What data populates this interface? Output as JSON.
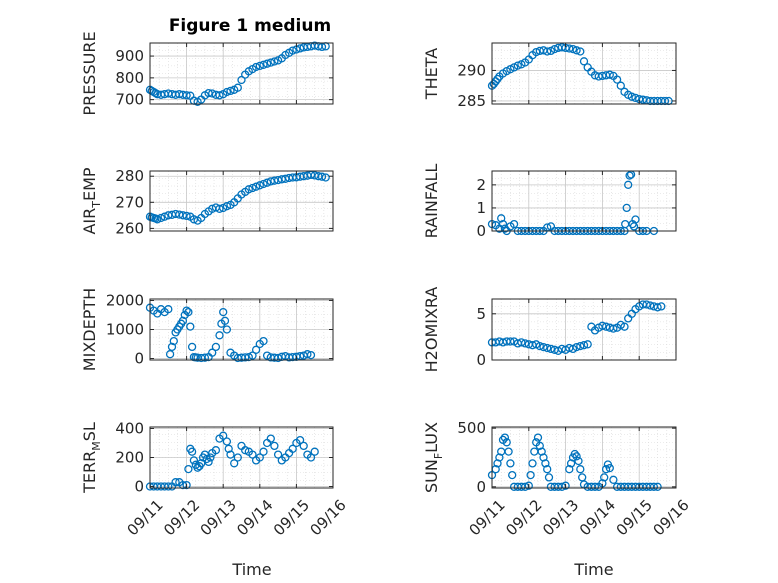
{
  "figure": {
    "title": "Figure 1 medium",
    "xlabel": "Time",
    "x_ticks": [
      "09/11",
      "09/12",
      "09/13",
      "09/14",
      "09/15",
      "09/16"
    ]
  },
  "chart_data": [
    {
      "type": "scatter",
      "ylabel_main": "PRESSURE",
      "ylabel_sub": "",
      "ylabel_tail": "",
      "ylim": [
        680,
        960
      ],
      "yticks": [
        700,
        800,
        900
      ],
      "xlim": [
        0,
        5
      ],
      "x": [
        0,
        0.05,
        0.1,
        0.15,
        0.2,
        0.3,
        0.4,
        0.5,
        0.6,
        0.7,
        0.8,
        0.9,
        1.0,
        1.1,
        1.2,
        1.3,
        1.4,
        1.5,
        1.6,
        1.7,
        1.8,
        1.9,
        2.0,
        2.1,
        2.2,
        2.3,
        2.4,
        2.5,
        2.6,
        2.7,
        2.8,
        2.9,
        3.0,
        3.1,
        3.2,
        3.3,
        3.4,
        3.5,
        3.6,
        3.7,
        3.8,
        3.9,
        4.0,
        4.1,
        4.2,
        4.3,
        4.4,
        4.5,
        4.6,
        4.7,
        4.8
      ],
      "y": [
        745,
        740,
        735,
        730,
        725,
        722,
        725,
        728,
        725,
        722,
        725,
        722,
        720,
        718,
        695,
        690,
        700,
        720,
        730,
        728,
        722,
        720,
        725,
        735,
        740,
        745,
        755,
        790,
        815,
        830,
        840,
        850,
        855,
        860,
        865,
        870,
        875,
        880,
        890,
        905,
        915,
        925,
        930,
        935,
        940,
        942,
        945,
        948,
        945,
        942,
        945
      ]
    },
    {
      "type": "scatter",
      "ylabel_main": "THETA",
      "ylabel_sub": "",
      "ylabel_tail": "",
      "ylim": [
        284.5,
        294.5
      ],
      "yticks": [
        285,
        290
      ],
      "xlim": [
        0,
        5
      ],
      "x": [
        0,
        0.05,
        0.1,
        0.15,
        0.2,
        0.3,
        0.4,
        0.5,
        0.6,
        0.7,
        0.8,
        0.9,
        1.0,
        1.1,
        1.2,
        1.3,
        1.4,
        1.5,
        1.6,
        1.7,
        1.8,
        1.9,
        2.0,
        2.1,
        2.2,
        2.3,
        2.4,
        2.5,
        2.6,
        2.7,
        2.8,
        2.9,
        3.0,
        3.1,
        3.2,
        3.3,
        3.4,
        3.5,
        3.6,
        3.7,
        3.8,
        3.9,
        4.0,
        4.1,
        4.2,
        4.3,
        4.4,
        4.5,
        4.6,
        4.7,
        4.8
      ],
      "y": [
        287.5,
        287.8,
        288.2,
        288.6,
        289.0,
        289.5,
        289.9,
        290.2,
        290.5,
        290.8,
        291.0,
        291.3,
        291.8,
        292.5,
        293.0,
        293.2,
        293.3,
        293.1,
        293.2,
        293.5,
        293.7,
        293.8,
        293.7,
        293.6,
        293.5,
        293.3,
        293.1,
        291.5,
        290.5,
        289.8,
        289.2,
        289.0,
        289.1,
        289.2,
        289.3,
        289.1,
        288.5,
        287.5,
        286.5,
        286.0,
        285.7,
        285.5,
        285.3,
        285.2,
        285.1,
        285.0,
        285.0,
        285.0,
        285.0,
        285.0,
        285.0
      ]
    },
    {
      "type": "scatter",
      "ylabel_main": "AIR",
      "ylabel_sub": "T",
      "ylabel_tail": "EMP",
      "ylim": [
        259,
        282
      ],
      "yticks": [
        260,
        270,
        280
      ],
      "xlim": [
        0,
        5
      ],
      "x": [
        0,
        0.05,
        0.1,
        0.15,
        0.2,
        0.3,
        0.4,
        0.5,
        0.6,
        0.7,
        0.8,
        0.9,
        1.0,
        1.1,
        1.2,
        1.3,
        1.4,
        1.5,
        1.6,
        1.7,
        1.8,
        1.9,
        2.0,
        2.1,
        2.2,
        2.3,
        2.4,
        2.5,
        2.6,
        2.7,
        2.8,
        2.9,
        3.0,
        3.1,
        3.2,
        3.3,
        3.4,
        3.5,
        3.6,
        3.7,
        3.8,
        3.9,
        4.0,
        4.1,
        4.2,
        4.3,
        4.4,
        4.5,
        4.6,
        4.7,
        4.8
      ],
      "y": [
        264.5,
        264.2,
        264.0,
        263.8,
        263.5,
        264.0,
        264.5,
        265.0,
        265.2,
        265.5,
        265.3,
        265.0,
        264.8,
        264.5,
        263.5,
        263.0,
        264.0,
        265.5,
        266.5,
        267.5,
        268.0,
        267.5,
        267.8,
        268.5,
        269.0,
        270.0,
        271.5,
        273.0,
        274.0,
        275.0,
        275.5,
        276.0,
        276.5,
        277.0,
        277.5,
        278.0,
        278.3,
        278.5,
        278.8,
        279.0,
        279.3,
        279.5,
        279.6,
        279.8,
        280.0,
        280.2,
        280.5,
        280.3,
        280.0,
        279.8,
        279.5
      ]
    },
    {
      "type": "scatter",
      "ylabel_main": "RAINFALL",
      "ylabel_sub": "",
      "ylabel_tail": "",
      "ylim": [
        0,
        2.6
      ],
      "yticks": [
        0,
        1,
        2
      ],
      "xlim": [
        0,
        5
      ],
      "x": [
        0,
        0.1,
        0.2,
        0.25,
        0.3,
        0.35,
        0.4,
        0.5,
        0.6,
        0.7,
        0.8,
        0.9,
        1.0,
        1.1,
        1.2,
        1.3,
        1.4,
        1.5,
        1.6,
        1.7,
        1.8,
        1.9,
        2.0,
        2.1,
        2.2,
        2.3,
        2.4,
        2.5,
        2.6,
        2.7,
        2.8,
        2.9,
        3.0,
        3.1,
        3.2,
        3.3,
        3.4,
        3.5,
        3.6,
        3.62,
        3.66,
        3.7,
        3.74,
        3.78,
        3.82,
        3.86,
        3.9,
        4.0,
        4.1,
        4.2,
        4.4
      ],
      "y": [
        0.3,
        0.25,
        0.1,
        0.55,
        0.3,
        0.1,
        0,
        0.2,
        0.3,
        0,
        0,
        0,
        0,
        0,
        0,
        0,
        0,
        0.15,
        0.2,
        0,
        0,
        0,
        0,
        0,
        0,
        0,
        0,
        0,
        0,
        0,
        0,
        0,
        0,
        0,
        0,
        0,
        0,
        0,
        0,
        0.3,
        1.0,
        2.0,
        2.4,
        2.45,
        0.3,
        0.2,
        0.5,
        0,
        0,
        0,
        0
      ]
    },
    {
      "type": "scatter",
      "ylabel_main": "MIXDEPTH",
      "ylabel_sub": "",
      "ylabel_tail": "",
      "ylim": [
        -50,
        2050
      ],
      "yticks": [
        0,
        1000,
        2000
      ],
      "xlim": [
        0,
        5
      ],
      "x": [
        0,
        0.1,
        0.2,
        0.3,
        0.4,
        0.5,
        0.55,
        0.6,
        0.65,
        0.7,
        0.75,
        0.8,
        0.85,
        0.9,
        0.95,
        1.0,
        1.05,
        1.1,
        1.15,
        1.2,
        1.25,
        1.3,
        1.4,
        1.5,
        1.6,
        1.7,
        1.8,
        1.9,
        1.95,
        2.0,
        2.05,
        2.1,
        2.2,
        2.3,
        2.4,
        2.5,
        2.6,
        2.7,
        2.8,
        2.9,
        3.0,
        3.1,
        3.2,
        3.3,
        3.4,
        3.5,
        3.6,
        3.7,
        3.8,
        3.9,
        4.0,
        4.1,
        4.2,
        4.3,
        4.4
      ],
      "y": [
        1750,
        1650,
        1550,
        1700,
        1600,
        1700,
        150,
        400,
        600,
        900,
        1000,
        1100,
        1200,
        1300,
        1500,
        1650,
        1600,
        1100,
        400,
        50,
        40,
        30,
        20,
        30,
        50,
        200,
        400,
        800,
        1200,
        1600,
        1300,
        1000,
        200,
        100,
        20,
        30,
        40,
        50,
        100,
        300,
        500,
        600,
        100,
        40,
        30,
        20,
        60,
        80,
        40,
        50,
        60,
        80,
        100,
        150,
        120
      ]
    },
    {
      "type": "scatter",
      "ylabel_main": "H2OMIXRA",
      "ylabel_sub": "",
      "ylabel_tail": "",
      "ylim": [
        0,
        6.6
      ],
      "yticks": [
        0,
        5
      ],
      "xlim": [
        0,
        5
      ],
      "x": [
        0,
        0.1,
        0.2,
        0.3,
        0.4,
        0.5,
        0.6,
        0.7,
        0.8,
        0.9,
        1.0,
        1.1,
        1.2,
        1.3,
        1.4,
        1.5,
        1.6,
        1.7,
        1.8,
        1.9,
        2.0,
        2.1,
        2.2,
        2.3,
        2.4,
        2.5,
        2.6,
        2.7,
        2.8,
        2.9,
        3.0,
        3.1,
        3.2,
        3.3,
        3.4,
        3.5,
        3.6,
        3.7,
        3.8,
        3.9,
        4.0,
        4.1,
        4.2,
        4.3,
        4.4,
        4.5,
        4.6
      ],
      "y": [
        1.9,
        1.9,
        2.0,
        1.9,
        2.0,
        2.0,
        2.0,
        1.8,
        1.9,
        1.8,
        1.7,
        1.6,
        1.7,
        1.5,
        1.4,
        1.3,
        1.2,
        1.1,
        1.0,
        1.2,
        1.1,
        1.3,
        1.2,
        1.4,
        1.5,
        1.6,
        1.7,
        3.6,
        3.2,
        3.5,
        3.7,
        3.6,
        3.5,
        3.4,
        3.5,
        3.8,
        3.6,
        4.5,
        5.0,
        5.5,
        5.8,
        6.0,
        6.0,
        5.9,
        5.8,
        5.7,
        5.8
      ]
    },
    {
      "type": "scatter",
      "ylabel_main": "TERR",
      "ylabel_sub": "M",
      "ylabel_tail": "SL",
      "ylim": [
        -10,
        410
      ],
      "yticks": [
        0,
        200,
        400
      ],
      "xlim": [
        0,
        5
      ],
      "x": [
        0,
        0.1,
        0.2,
        0.3,
        0.4,
        0.5,
        0.6,
        0.7,
        0.8,
        0.9,
        1.0,
        1.05,
        1.1,
        1.15,
        1.2,
        1.25,
        1.3,
        1.35,
        1.4,
        1.45,
        1.5,
        1.55,
        1.6,
        1.65,
        1.7,
        1.8,
        1.9,
        2.0,
        2.1,
        2.15,
        2.2,
        2.3,
        2.4,
        2.5,
        2.6,
        2.7,
        2.8,
        2.9,
        3.0,
        3.1,
        3.2,
        3.3,
        3.4,
        3.5,
        3.6,
        3.7,
        3.8,
        3.9,
        4.0,
        4.1,
        4.2,
        4.3,
        4.4,
        4.5
      ],
      "y": [
        0,
        0,
        0,
        0,
        0,
        0,
        0,
        30,
        30,
        10,
        10,
        120,
        260,
        240,
        180,
        150,
        130,
        140,
        160,
        200,
        220,
        190,
        170,
        200,
        230,
        250,
        330,
        350,
        310,
        260,
        220,
        160,
        200,
        280,
        250,
        240,
        220,
        180,
        200,
        240,
        300,
        330,
        280,
        220,
        180,
        200,
        230,
        260,
        300,
        320,
        280,
        220,
        200,
        240
      ]
    },
    {
      "type": "scatter",
      "ylabel_main": "SUN",
      "ylabel_sub": "F",
      "ylabel_tail": "LUX",
      "ylim": [
        -10,
        510
      ],
      "yticks": [
        0,
        500
      ],
      "xlim": [
        0,
        5
      ],
      "x": [
        0,
        0.1,
        0.15,
        0.2,
        0.25,
        0.3,
        0.35,
        0.4,
        0.45,
        0.5,
        0.55,
        0.6,
        0.7,
        0.8,
        0.9,
        1.0,
        1.05,
        1.1,
        1.15,
        1.2,
        1.25,
        1.3,
        1.35,
        1.4,
        1.45,
        1.5,
        1.55,
        1.6,
        1.7,
        1.8,
        1.9,
        2.0,
        2.1,
        2.15,
        2.2,
        2.25,
        2.3,
        2.35,
        2.4,
        2.45,
        2.5,
        2.6,
        2.7,
        2.8,
        2.9,
        3.0,
        3.05,
        3.1,
        3.15,
        3.2,
        3.3,
        3.4,
        3.5,
        3.6,
        3.7,
        3.8,
        3.9,
        4.0,
        4.1,
        4.2,
        4.3,
        4.4,
        4.5
      ],
      "y": [
        100,
        150,
        200,
        250,
        300,
        400,
        420,
        380,
        300,
        200,
        100,
        0,
        0,
        0,
        0,
        10,
        100,
        200,
        300,
        380,
        420,
        350,
        300,
        250,
        200,
        150,
        80,
        0,
        0,
        0,
        0,
        10,
        150,
        200,
        250,
        280,
        260,
        220,
        150,
        80,
        20,
        0,
        0,
        0,
        0,
        30,
        80,
        150,
        190,
        160,
        60,
        0,
        0,
        0,
        0,
        0,
        0,
        0,
        0,
        0,
        0,
        0,
        0
      ]
    }
  ]
}
